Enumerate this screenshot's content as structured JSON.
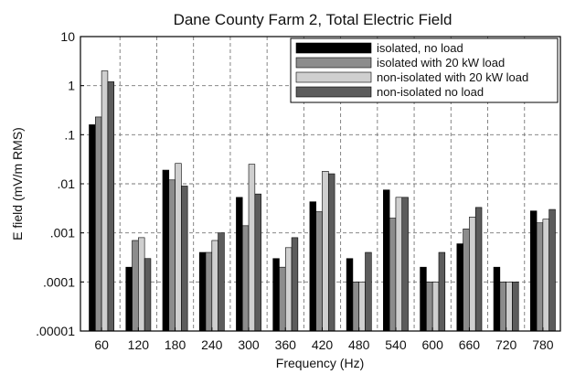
{
  "chart_data": {
    "type": "bar",
    "title": "Dane County Farm 2, Total Electric Field",
    "xlabel": "Frequency (Hz)",
    "ylabel": "E field (mV/m RMS)",
    "yscale": "log",
    "ylim": [
      1e-05,
      10
    ],
    "y_tick_values": [
      10,
      1,
      0.1,
      0.01,
      0.001,
      0.0001,
      1e-05
    ],
    "y_tick_labels": [
      "10",
      "1",
      ".1",
      ".01",
      ".001",
      ".0001",
      ".00001"
    ],
    "categories": [
      "60",
      "120",
      "180",
      "240",
      "300",
      "360",
      "420",
      "480",
      "540",
      "600",
      "660",
      "720",
      "780"
    ],
    "grid": true,
    "legend_position": "top-right",
    "series": [
      {
        "name": "isolated, no load",
        "color": "#000000",
        "values": [
          0.16,
          0.0002,
          0.019,
          0.0004,
          0.0053,
          0.0003,
          0.0043,
          0.0003,
          0.0075,
          0.0002,
          0.0006,
          0.0002,
          0.0028
        ]
      },
      {
        "name": "isolated with 20 kW load",
        "color": "#8c8c8c",
        "values": [
          0.23,
          0.0007,
          0.012,
          0.0004,
          0.0014,
          0.0002,
          0.0027,
          0.0001,
          0.002,
          0.0001,
          0.0012,
          0.0001,
          0.0016
        ]
      },
      {
        "name": "non-isolated with 20 kW load",
        "color": "#cfcfcf",
        "values": [
          2.0,
          0.0008,
          0.026,
          0.0007,
          0.025,
          0.0005,
          0.018,
          0.0001,
          0.0053,
          0.0001,
          0.0021,
          0.0001,
          0.0019
        ]
      },
      {
        "name": "non-isolated no load",
        "color": "#5c5c5c",
        "values": [
          1.2,
          0.0003,
          0.009,
          0.001,
          0.0062,
          0.0008,
          0.016,
          0.0004,
          0.0053,
          0.0004,
          0.0033,
          0.0001,
          0.003
        ]
      }
    ]
  }
}
